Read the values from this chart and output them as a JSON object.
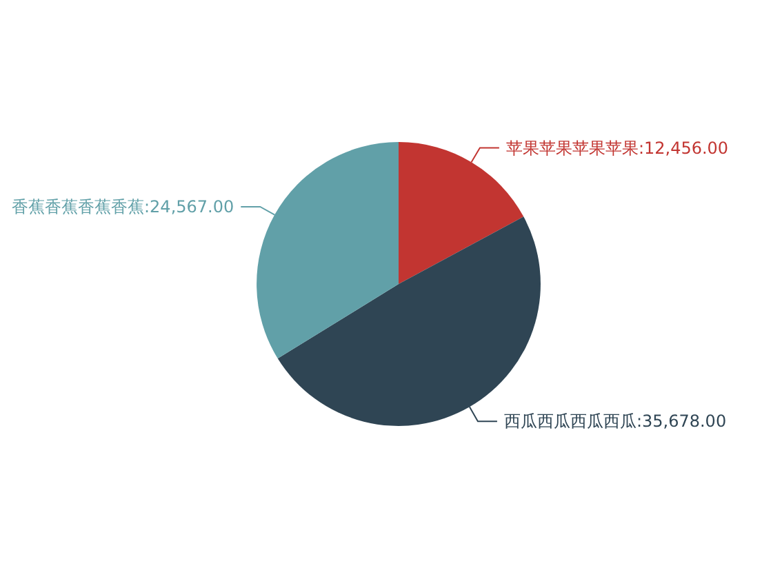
{
  "chart_data": {
    "type": "pie",
    "categories": [
      "苹果苹果苹果苹果",
      "西瓜西瓜西瓜西瓜",
      "香蕉香蕉香蕉香蕉"
    ],
    "values": [
      12456,
      35678,
      24567
    ],
    "colors": [
      "#c23531",
      "#2f4554",
      "#61a0a8"
    ],
    "value_labels": [
      "12,456.00",
      "35,678.00",
      "24,567.00"
    ]
  }
}
